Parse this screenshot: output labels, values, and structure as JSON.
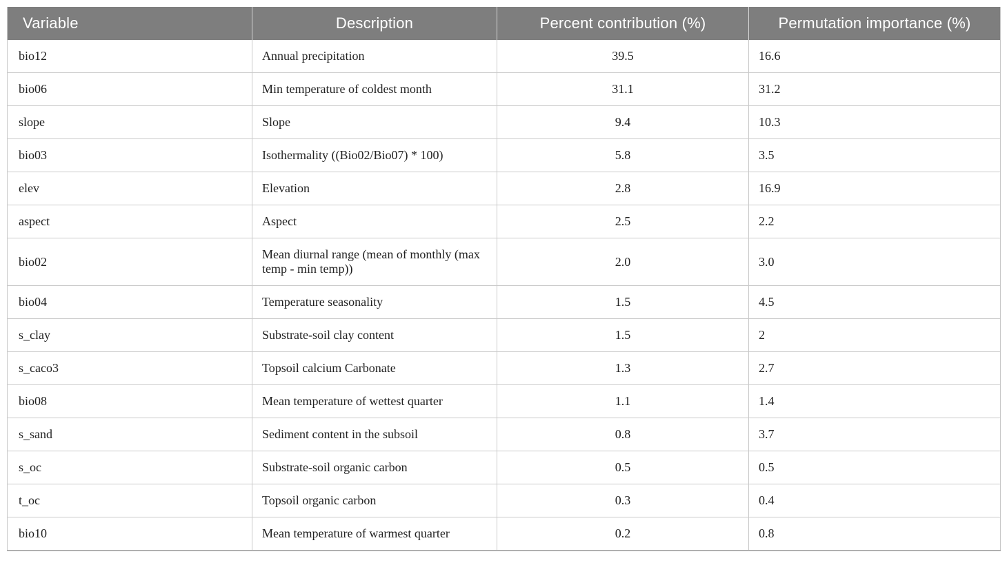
{
  "table": {
    "columns": [
      {
        "label": "Variable",
        "align": "left"
      },
      {
        "label": "Description",
        "align": "center"
      },
      {
        "label": "Percent contribution (%)",
        "align": "center"
      },
      {
        "label": "Permutation importance (%)",
        "align": "center"
      }
    ],
    "rows": [
      {
        "variable": "bio12",
        "description": "Annual precipitation",
        "percent_contribution": "39.5",
        "permutation_importance": "16.6"
      },
      {
        "variable": "bio06",
        "description": "Min temperature of coldest month",
        "percent_contribution": "31.1",
        "permutation_importance": "31.2"
      },
      {
        "variable": "slope",
        "description": "Slope",
        "percent_contribution": "9.4",
        "permutation_importance": "10.3"
      },
      {
        "variable": "bio03",
        "description": "Isothermality ((Bio02/Bio07) * 100)",
        "percent_contribution": "5.8",
        "permutation_importance": "3.5"
      },
      {
        "variable": "elev",
        "description": "Elevation",
        "percent_contribution": "2.8",
        "permutation_importance": "16.9"
      },
      {
        "variable": "aspect",
        "description": "Aspect",
        "percent_contribution": "2.5",
        "permutation_importance": "2.2"
      },
      {
        "variable": "bio02",
        "description": "Mean diurnal range (mean of monthly (max temp - min temp))",
        "percent_contribution": "2.0",
        "permutation_importance": "3.0"
      },
      {
        "variable": "bio04",
        "description": "Temperature seasonality",
        "percent_contribution": "1.5",
        "permutation_importance": "4.5"
      },
      {
        "variable": "s_clay",
        "description": "Substrate-soil clay content",
        "percent_contribution": "1.5",
        "permutation_importance": "2"
      },
      {
        "variable": "s_caco3",
        "description": "Topsoil calcium Carbonate",
        "percent_contribution": "1.3",
        "permutation_importance": "2.7"
      },
      {
        "variable": "bio08",
        "description": "Mean temperature of wettest quarter",
        "percent_contribution": "1.1",
        "permutation_importance": "1.4"
      },
      {
        "variable": "s_sand",
        "description": "Sediment content in the subsoil",
        "percent_contribution": "0.8",
        "permutation_importance": "3.7"
      },
      {
        "variable": "s_oc",
        "description": "Substrate-soil organic carbon",
        "percent_contribution": "0.5",
        "permutation_importance": "0.5"
      },
      {
        "variable": "t_oc",
        "description": "Topsoil organic carbon",
        "percent_contribution": "0.3",
        "permutation_importance": "0.4"
      },
      {
        "variable": "bio10",
        "description": "Mean temperature of warmest quarter",
        "percent_contribution": "0.2",
        "permutation_importance": "0.8"
      }
    ]
  },
  "colors": {
    "header_bg": "#7e7e7e",
    "header_text": "#ffffff",
    "grid_line": "#c9c9c9",
    "header_divider": "#d6d6d6",
    "bottom_border": "#b0b0b0",
    "body_text": "#222222",
    "background": "#ffffff"
  }
}
